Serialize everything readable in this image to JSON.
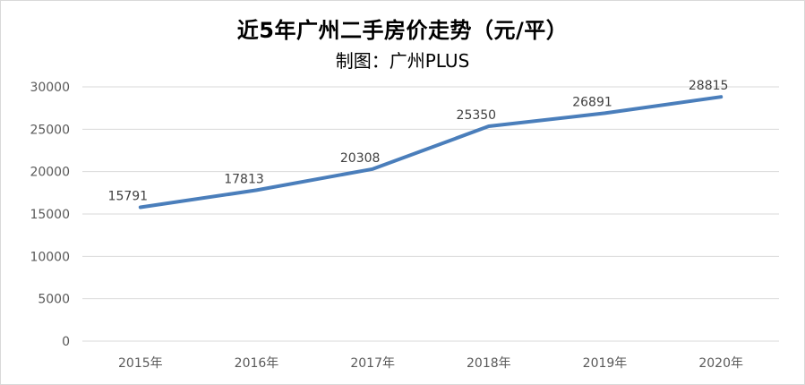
{
  "chart_data": {
    "type": "line",
    "title": "近5年广州二手房价走势（元/平）",
    "subtitle": "制图：广州PLUS",
    "categories": [
      "2015年",
      "2016年",
      "2017年",
      "2018年",
      "2019年",
      "2020年"
    ],
    "series": [
      {
        "values": [
          15791,
          17813,
          20308,
          25350,
          26891,
          28815
        ]
      }
    ],
    "data_labels": [
      "15791",
      "17813",
      "20308",
      "25350",
      "26891",
      "28815"
    ],
    "y_ticks": [
      "0",
      "5000",
      "10000",
      "15000",
      "20000",
      "25000",
      "30000"
    ],
    "ylim": [
      0,
      30000
    ],
    "xlabel": "",
    "ylabel": "",
    "grid": true,
    "legend": "none",
    "colors": {
      "line": "#4a7ebb",
      "grid": "#d9d9d9",
      "tick_text": "#595959"
    }
  }
}
